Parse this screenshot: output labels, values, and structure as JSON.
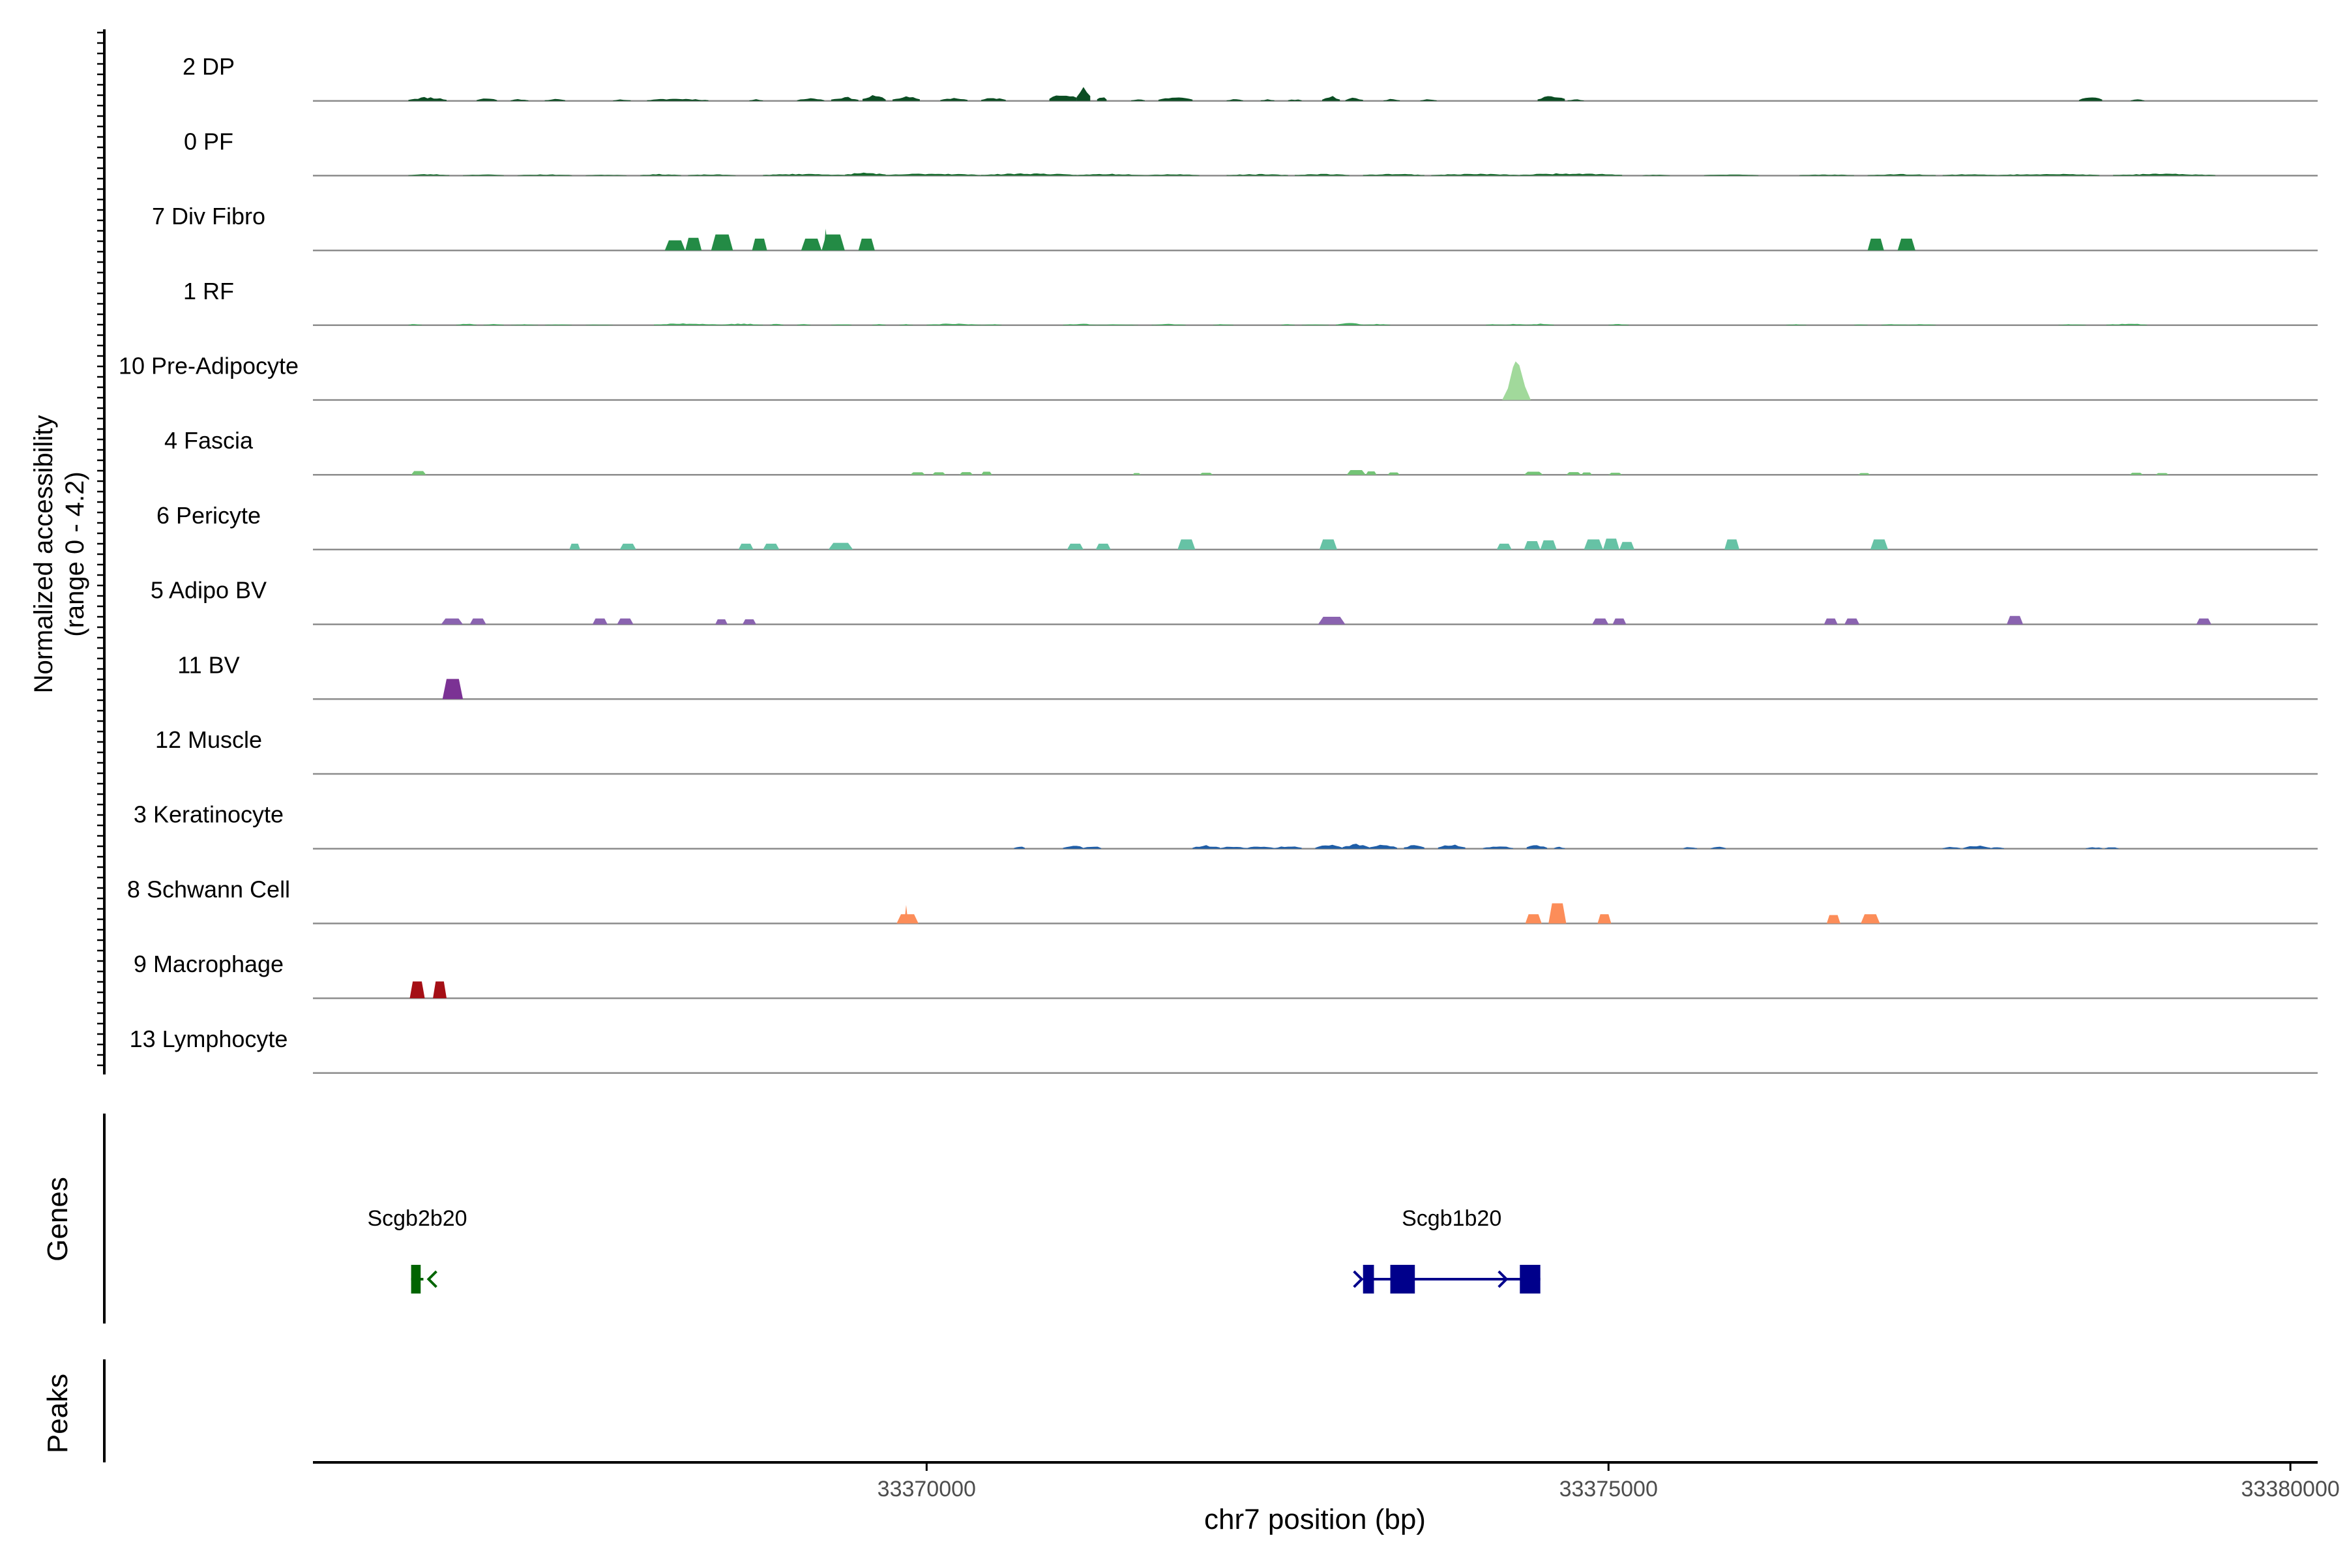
{
  "chart_data": {
    "type": "area",
    "subtype": "coverage-tracks",
    "xlabel": "chr7 position (bp)",
    "ylabel_line1": "Normalized accessibility",
    "ylabel_line2": "(range 0 - 4.2)",
    "y_range": [
      0,
      4.2
    ],
    "x_range": [
      33365500,
      33380200
    ],
    "x_ticks": [
      33370000,
      33375000,
      33380000
    ],
    "x_tick_labels": [
      "33370000",
      "33375000",
      "33380000"
    ],
    "tracks": [
      {
        "label": "2 DP",
        "color": "#0b4d23",
        "type": "coverage"
      },
      {
        "label": "0 PF",
        "color": "#166b2c",
        "type": "coverage"
      },
      {
        "label": "7 Div Fibro",
        "color": "#238b45",
        "type": "blocks",
        "peaks": [
          [
            33368080,
            33368230,
            0.6
          ],
          [
            33368230,
            33368350,
            0.75
          ],
          [
            33368420,
            33368580,
            0.95
          ],
          [
            33368720,
            33368830,
            0.7
          ],
          [
            33369080,
            33369230,
            0.7
          ],
          [
            33369230,
            33369400,
            0.95
          ],
          [
            33369500,
            33369620,
            0.7
          ],
          [
            33376900,
            33377020,
            0.7
          ],
          [
            33377120,
            33377250,
            0.7
          ]
        ],
        "spikes": [
          [
            33369260,
            1.3
          ]
        ]
      },
      {
        "label": "1 RF",
        "color": "#41ab5d",
        "type": "coverage"
      },
      {
        "label": "10 Pre-Adipocyte",
        "color": "#a1d99b",
        "type": "spike",
        "peaks": [
          [
            33374220,
            33374430,
            2.3
          ]
        ]
      },
      {
        "label": "4 Fascia",
        "color": "#74c476",
        "type": "blocks",
        "peaks": [
          [
            33366220,
            33366330,
            0.22
          ],
          [
            33369880,
            33369990,
            0.15
          ],
          [
            33370040,
            33370140,
            0.15
          ],
          [
            33370240,
            33370340,
            0.16
          ],
          [
            33370400,
            33370480,
            0.18
          ],
          [
            33371510,
            33371570,
            0.1
          ],
          [
            33372000,
            33372100,
            0.12
          ],
          [
            33373080,
            33373220,
            0.28
          ],
          [
            33373220,
            33373300,
            0.2
          ],
          [
            33373380,
            33373470,
            0.14
          ],
          [
            33374380,
            33374520,
            0.18
          ],
          [
            33374690,
            33374800,
            0.16
          ],
          [
            33374800,
            33374880,
            0.14
          ],
          [
            33375000,
            33375100,
            0.12
          ],
          [
            33376830,
            33376920,
            0.1
          ],
          [
            33378820,
            33378920,
            0.12
          ],
          [
            33379010,
            33379110,
            0.1
          ]
        ]
      },
      {
        "label": "6 Pericyte",
        "color": "#66c2a5",
        "type": "blocks",
        "peaks": [
          [
            33367380,
            33367460,
            0.35
          ],
          [
            33367750,
            33367870,
            0.35
          ],
          [
            33368620,
            33368730,
            0.35
          ],
          [
            33368800,
            33368920,
            0.35
          ],
          [
            33369280,
            33369460,
            0.4
          ],
          [
            33371030,
            33371150,
            0.35
          ],
          [
            33371240,
            33371350,
            0.35
          ],
          [
            33371840,
            33371970,
            0.6
          ],
          [
            33372880,
            33373010,
            0.6
          ],
          [
            33374180,
            33374290,
            0.35
          ],
          [
            33374380,
            33374500,
            0.5
          ],
          [
            33374500,
            33374620,
            0.55
          ],
          [
            33374820,
            33374960,
            0.6
          ],
          [
            33374960,
            33375080,
            0.65
          ],
          [
            33375080,
            33375190,
            0.45
          ],
          [
            33375850,
            33375960,
            0.6
          ],
          [
            33376920,
            33377050,
            0.6
          ]
        ]
      },
      {
        "label": "5 Adipo BV",
        "color": "#8a63b0",
        "type": "blocks",
        "peaks": [
          [
            33366440,
            33366600,
            0.35
          ],
          [
            33366650,
            33366770,
            0.35
          ],
          [
            33367550,
            33367660,
            0.35
          ],
          [
            33367730,
            33367850,
            0.35
          ],
          [
            33368450,
            33368540,
            0.3
          ],
          [
            33368650,
            33368750,
            0.3
          ],
          [
            33372870,
            33373070,
            0.45
          ],
          [
            33374880,
            33375000,
            0.35
          ],
          [
            33375030,
            33375130,
            0.35
          ],
          [
            33376580,
            33376680,
            0.35
          ],
          [
            33376730,
            33376840,
            0.35
          ],
          [
            33377920,
            33378040,
            0.5
          ],
          [
            33379310,
            33379420,
            0.35
          ]
        ]
      },
      {
        "label": "11 BV",
        "color": "#7b3294",
        "type": "blocks",
        "peaks": [
          [
            33366450,
            33366600,
            1.2
          ]
        ]
      },
      {
        "label": "12 Muscle",
        "color": "#5e3c99",
        "type": "empty"
      },
      {
        "label": "3 Keratinocyte",
        "color": "#1f5ea8",
        "type": "coverage"
      },
      {
        "label": "8 Schwann Cell",
        "color": "#fc8d59",
        "type": "blocks",
        "peaks": [
          [
            33369780,
            33369940,
            0.55
          ],
          [
            33374390,
            33374510,
            0.55
          ],
          [
            33374560,
            33374690,
            1.2
          ],
          [
            33374920,
            33375020,
            0.55
          ],
          [
            33376600,
            33376700,
            0.5
          ],
          [
            33376850,
            33376990,
            0.55
          ]
        ],
        "spikes": [
          [
            33369850,
            1.1
          ]
        ]
      },
      {
        "label": "9 Macrophage",
        "color": "#a50f15",
        "type": "blocks",
        "peaks": [
          [
            33366210,
            33366320,
            1.0
          ],
          [
            33366380,
            33366480,
            1.0
          ]
        ]
      },
      {
        "label": "13 Lymphocyte",
        "color": "#c51b7d",
        "type": "empty"
      }
    ],
    "genes": [
      {
        "name": "Scgb2b20",
        "color": "#006400",
        "start": 33366220,
        "end": 33366310,
        "strand": "-",
        "exons": [
          [
            33366220,
            33366290
          ]
        ]
      },
      {
        "name": "Scgb1b20",
        "color": "#00008b",
        "start": 33373200,
        "end": 33374500,
        "strand": "+",
        "exons": [
          [
            33373200,
            33373280
          ],
          [
            33373400,
            33373580
          ],
          [
            33374350,
            33374500
          ]
        ]
      }
    ],
    "panel_labels": {
      "genes": "Genes",
      "peaks": "Peaks"
    }
  }
}
